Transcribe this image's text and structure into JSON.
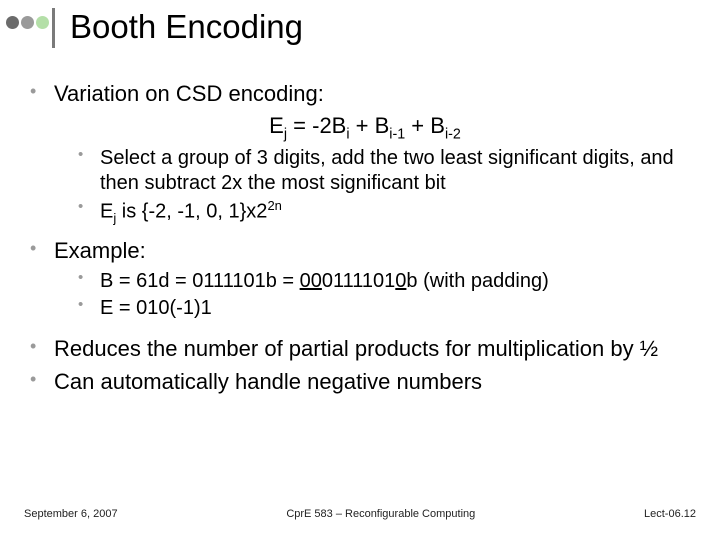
{
  "colors": {
    "dot_dark": "#6b6b6b",
    "dot_mid": "#9a9a9a",
    "dot_light": "#b4dfa8",
    "sep": "#7a7a7a"
  },
  "title": "Booth Encoding",
  "bullets": {
    "b1": "Variation on CSD encoding:",
    "eq_pre": "E",
    "eq_j1": "j",
    "eq_mid1": " = -2B",
    "eq_i1": "i",
    "eq_mid2": " + B",
    "eq_i2": "i-1",
    "eq_mid3": " + B",
    "eq_i3": "i-2",
    "s1": "Select a group of 3 digits, add the two least significant digits, and then subtract 2x the most significant bit",
    "s2_pre": "E",
    "s2_j": "j",
    "s2_mid": " is {-2, -1, 0, 1}x2",
    "s2_sup": "2n",
    "b2": "Example:",
    "s3_pre": "B = 61d = 0111101b = ",
    "s3_u1": "00",
    "s3_mid": "0111101",
    "s3_u2": "0",
    "s3_post": "b (with padding)",
    "s4": "E = 010(-1)1",
    "b3": "Reduces the number of partial products for multiplication by ½",
    "b4": "Can automatically handle negative numbers"
  },
  "footer": {
    "left": "September 6, 2007",
    "center": "CprE 583 – Reconfigurable Computing",
    "right": "Lect-06.12"
  }
}
